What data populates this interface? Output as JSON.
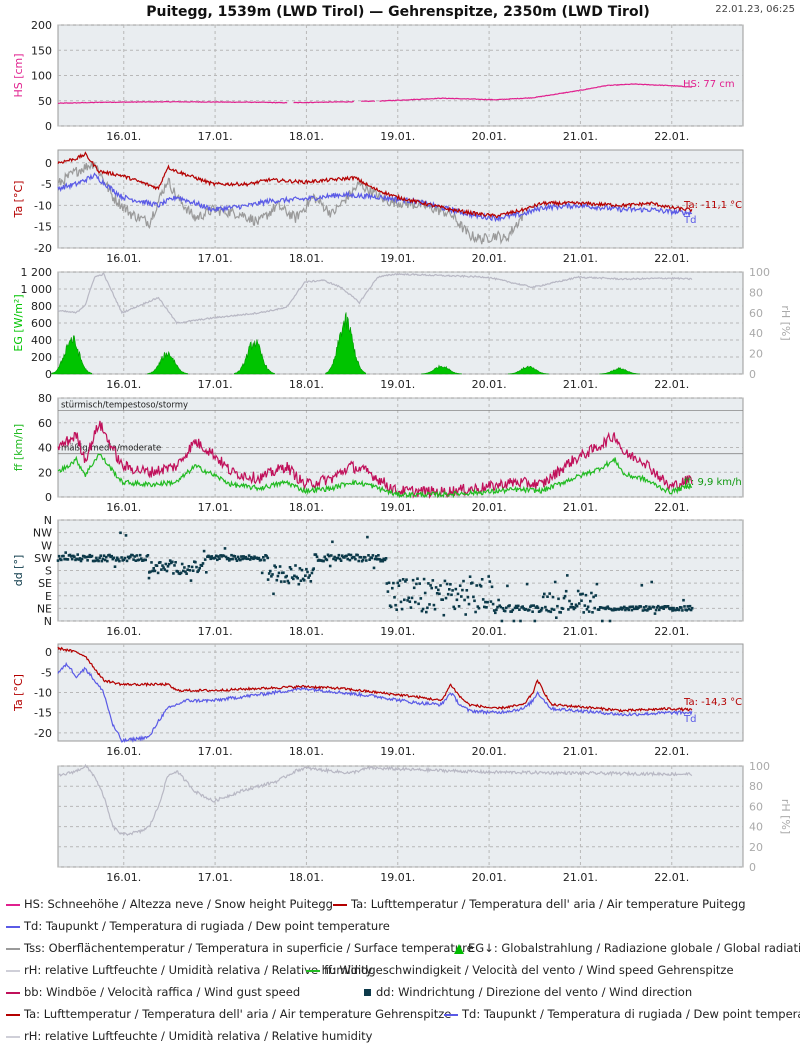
{
  "header": {
    "title": "Puitegg, 1539m (LWD Tirol) — Gehrenspitze, 2350m (LWD Tirol)",
    "timestamp": "22.01.23, 06:25"
  },
  "colors": {
    "snow": "#e0208e",
    "temp": "#b40000",
    "dew": "#5a5ae6",
    "surface": "#9a9a9a",
    "rh": "#b8b8c4",
    "radiation": "#00c400",
    "wind": "#22bb22",
    "gust": "#c0105a",
    "direction": "#0d3a4a",
    "panel_bg": "#e9edf0"
  },
  "chart_data": [
    {
      "type": "line",
      "id": "snow",
      "ylabel": "HS [cm]",
      "ylim": [
        0,
        200
      ],
      "yticks": [
        0,
        50,
        100,
        150,
        200
      ],
      "xticks": [
        "16.01.",
        "17.01.",
        "18.01.",
        "19.01.",
        "20.01.",
        "21.01.",
        "22.01."
      ],
      "series": [
        {
          "name": "HS",
          "x": [
            15.3,
            15.8,
            16.5,
            17.5,
            17.8,
            18.5,
            18.9,
            19.5,
            20.1,
            20.5,
            21.0,
            21.3,
            21.6,
            22.0,
            22.25
          ],
          "values": [
            45,
            47,
            48,
            47,
            46,
            48,
            50,
            55,
            52,
            56,
            70,
            80,
            83,
            80,
            77
          ]
        }
      ],
      "annotations": [
        {
          "text": "HS: 77 cm"
        }
      ],
      "grid": true
    },
    {
      "type": "line",
      "id": "temp-puitegg",
      "ylabel": "Ta [°C]",
      "ylim": [
        -20,
        3
      ],
      "yticks": [
        0,
        -5,
        -10,
        -15,
        -20
      ],
      "xticks": [
        "16.01.",
        "17.01.",
        "18.01.",
        "19.01.",
        "20.01.",
        "21.01.",
        "22.01."
      ],
      "series": [
        {
          "name": "Ta",
          "x": [
            15.3,
            15.5,
            15.6,
            15.75,
            16.0,
            16.4,
            16.5,
            16.6,
            17.0,
            17.4,
            17.6,
            18.0,
            18.3,
            18.55,
            18.75,
            19.0,
            19.3,
            19.6,
            19.9,
            20.1,
            20.4,
            20.6,
            21.0,
            21.5,
            21.8,
            22.0,
            22.25
          ],
          "values": [
            0,
            1,
            2,
            -2,
            -3,
            -6,
            -1,
            -2,
            -5,
            -5,
            -4,
            -4.5,
            -4,
            -3.5,
            -6,
            -8,
            -9.5,
            -11,
            -12,
            -12.5,
            -11,
            -9.5,
            -9.5,
            -10,
            -9.5,
            -10.5,
            -11.1
          ]
        },
        {
          "name": "Td",
          "x": [
            15.3,
            15.5,
            15.7,
            16.0,
            16.4,
            16.6,
            17.0,
            17.4,
            17.6,
            18.0,
            18.4,
            18.8,
            19.2,
            19.6,
            19.9,
            20.1,
            20.4,
            20.6,
            21.0,
            21.5,
            21.8,
            22.0,
            22.25
          ],
          "values": [
            -6,
            -5,
            -3,
            -8,
            -10,
            -8,
            -11,
            -10,
            -9,
            -8.5,
            -7.5,
            -8,
            -9,
            -11,
            -12.5,
            -13,
            -12,
            -10.5,
            -10,
            -11,
            -11,
            -11.5,
            -11.8
          ]
        },
        {
          "name": "Tss",
          "x": [
            15.3,
            15.5,
            15.7,
            15.9,
            16.1,
            16.3,
            16.5,
            16.6,
            16.8,
            17.0,
            17.3,
            17.5,
            17.7,
            17.9,
            18.1,
            18.3,
            18.6,
            18.9,
            19.3,
            19.6,
            19.8,
            19.95,
            20.1,
            20.2,
            20.4
          ],
          "values": [
            -5,
            -2,
            0,
            -8,
            -12,
            -14,
            -4,
            -8,
            -13,
            -11,
            -12,
            -14,
            -10,
            -13,
            -8,
            -12,
            -5,
            -9,
            -10,
            -12,
            -17,
            -18,
            -17,
            -18,
            -12
          ]
        }
      ],
      "annotations": [
        {
          "text": "Ta: -11,1 °C"
        },
        {
          "text": "Td"
        }
      ],
      "grid": true
    },
    {
      "type": "area",
      "id": "radiation",
      "ylabel": "EG [W/m²]",
      "ylabel_right": "rH [%]",
      "ylim": [
        0,
        1200
      ],
      "yticks": [
        0,
        200,
        400,
        600,
        800,
        1000,
        1200
      ],
      "yticks_labels": [
        "0",
        "200",
        "400",
        "600",
        "800",
        "1 000",
        "1 200"
      ],
      "ylim_right": [
        0,
        100
      ],
      "yticks_right": [
        0,
        20,
        40,
        60,
        80,
        100
      ],
      "xticks": [
        "16.01.",
        "17.01.",
        "18.01.",
        "19.01.",
        "20.01.",
        "21.01.",
        "22.01."
      ],
      "series": [
        {
          "name": "EG",
          "peaks": [
            [
              15.45,
              440
            ],
            [
              16.5,
              260
            ],
            [
              17.45,
              400
            ],
            [
              18.45,
              660
            ],
            [
              19.5,
              100
            ],
            [
              20.45,
              90
            ],
            [
              21.45,
              70
            ]
          ]
        },
        {
          "name": "rH",
          "x": [
            15.3,
            15.5,
            15.6,
            15.7,
            15.8,
            16.0,
            16.4,
            16.6,
            17.0,
            17.5,
            17.8,
            18.0,
            18.2,
            18.4,
            18.6,
            18.8,
            19.0,
            20.0,
            20.5,
            21.0,
            21.5,
            22.0,
            22.25
          ],
          "values": [
            62,
            60,
            68,
            95,
            98,
            60,
            75,
            50,
            55,
            60,
            65,
            90,
            92,
            85,
            70,
            95,
            98,
            95,
            85,
            95,
            93,
            94,
            93
          ]
        }
      ],
      "grid": true
    },
    {
      "type": "line",
      "id": "wind",
      "ylabel": "ff [km/h]",
      "ylim": [
        0,
        80
      ],
      "yticks": [
        0,
        20,
        40,
        60,
        80
      ],
      "xticks": [
        "16.01.",
        "17.01.",
        "18.01.",
        "19.01.",
        "20.01.",
        "21.01.",
        "22.01."
      ],
      "thresholds": [
        {
          "value": 70,
          "label": "stürmisch/tempestoso/stormy"
        },
        {
          "value": 35,
          "label": "mäßig/media/moderate"
        }
      ],
      "series": [
        {
          "name": "bb",
          "x": [
            15.3,
            15.5,
            15.6,
            15.75,
            16.0,
            16.3,
            16.6,
            16.8,
            17.0,
            17.2,
            17.5,
            17.8,
            18.0,
            18.3,
            18.5,
            18.7,
            19.0,
            19.5,
            20.0,
            20.3,
            20.6,
            20.9,
            21.2,
            21.4,
            21.5,
            21.7,
            22.0,
            22.25
          ],
          "values": [
            40,
            50,
            30,
            60,
            25,
            20,
            25,
            45,
            35,
            20,
            15,
            25,
            10,
            15,
            25,
            20,
            5,
            4,
            8,
            12,
            10,
            28,
            40,
            50,
            35,
            30,
            8,
            15
          ]
        },
        {
          "name": "ff",
          "x": [
            15.3,
            15.5,
            15.6,
            15.75,
            16.0,
            16.3,
            16.6,
            16.8,
            17.0,
            17.2,
            17.5,
            17.8,
            18.0,
            18.3,
            18.5,
            18.7,
            19.0,
            19.5,
            20.0,
            20.3,
            20.6,
            20.9,
            21.2,
            21.4,
            21.5,
            21.7,
            22.0,
            22.25
          ],
          "values": [
            20,
            30,
            18,
            35,
            12,
            10,
            12,
            25,
            18,
            10,
            7,
            12,
            5,
            7,
            12,
            10,
            2,
            2,
            4,
            6,
            5,
            14,
            22,
            30,
            18,
            15,
            4,
            9.9
          ]
        }
      ],
      "annotations": [
        {
          "text": "ff: 9,9 km/h"
        }
      ],
      "grid": true
    },
    {
      "type": "scatter",
      "id": "direction",
      "ylabel": "dd [°]",
      "yticks_labels": [
        "N",
        "NE",
        "E",
        "SE",
        "S",
        "SW",
        "W",
        "NW",
        "N"
      ],
      "ylim": [
        0,
        360
      ],
      "xticks": [
        "16.01.",
        "17.01.",
        "18.01.",
        "19.01.",
        "20.01.",
        "21.01.",
        "22.01."
      ],
      "series": [
        {
          "name": "dd",
          "segments": [
            [
              15.3,
              16.3,
              225,
              12
            ],
            [
              16.3,
              16.9,
              190,
              22
            ],
            [
              16.9,
              17.6,
              225,
              10
            ],
            [
              17.6,
              18.1,
              170,
              30
            ],
            [
              18.1,
              18.9,
              225,
              12
            ],
            [
              18.9,
              20.1,
              90,
              70
            ],
            [
              20.1,
              20.6,
              45,
              12
            ],
            [
              20.6,
              21.2,
              70,
              40
            ],
            [
              21.2,
              22.25,
              45,
              8
            ]
          ]
        }
      ],
      "grid": true
    },
    {
      "type": "line",
      "id": "temp-gehrenspitze",
      "ylabel": "Ta [°C]",
      "ylim": [
        -22,
        2
      ],
      "yticks": [
        0,
        -5,
        -10,
        -15,
        -20
      ],
      "xticks": [
        "16.01.",
        "17.01.",
        "18.01.",
        "19.01.",
        "20.01.",
        "21.01.",
        "22.01."
      ],
      "series": [
        {
          "name": "Ta",
          "x": [
            15.3,
            15.5,
            15.6,
            15.8,
            16.0,
            16.5,
            16.6,
            17.0,
            17.5,
            18.0,
            18.4,
            18.8,
            19.2,
            19.5,
            19.6,
            19.7,
            19.8,
            20.1,
            20.4,
            20.5,
            20.55,
            20.7,
            21.0,
            21.5,
            22.0,
            22.25
          ],
          "values": [
            1,
            0,
            -1,
            -7,
            -8,
            -8,
            -9.5,
            -9.5,
            -9,
            -8.5,
            -9,
            -10,
            -11,
            -12,
            -8,
            -11,
            -13,
            -14,
            -13,
            -10,
            -7,
            -13,
            -13.5,
            -14.5,
            -14,
            -14.3
          ]
        },
        {
          "name": "Td",
          "x": [
            15.3,
            15.4,
            15.5,
            15.6,
            15.8,
            15.9,
            16.0,
            16.3,
            16.4,
            16.5,
            16.7,
            17.0,
            17.5,
            18.0,
            18.4,
            18.8,
            19.2,
            19.5,
            19.6,
            19.7,
            19.8,
            20.1,
            20.4,
            20.5,
            20.55,
            20.7,
            21.0,
            21.5,
            22.0,
            22.25
          ],
          "values": [
            -5,
            -3,
            -6,
            -4,
            -10,
            -18,
            -22,
            -21,
            -17,
            -14,
            -12,
            -12,
            -10.5,
            -9,
            -10,
            -11,
            -12.5,
            -13,
            -10,
            -13,
            -14.5,
            -15,
            -14,
            -12,
            -10,
            -14,
            -14.5,
            -15.5,
            -15,
            -15
          ]
        }
      ],
      "annotations": [
        {
          "text": "Ta: -14,3 °C"
        },
        {
          "text": "Td"
        }
      ],
      "grid": true
    },
    {
      "type": "line",
      "id": "rh-gehrenspitze",
      "ylabel_right": "rH [%]",
      "ylim_right": [
        0,
        100
      ],
      "yticks_right": [
        0,
        20,
        40,
        60,
        80,
        100
      ],
      "xticks": [
        "16.01.",
        "17.01.",
        "18.01.",
        "19.01.",
        "20.01.",
        "21.01.",
        "22.01."
      ],
      "series": [
        {
          "name": "rH",
          "x": [
            15.3,
            15.5,
            15.6,
            15.7,
            15.8,
            15.9,
            16.0,
            16.2,
            16.3,
            16.4,
            16.5,
            16.6,
            16.8,
            17.0,
            17.3,
            17.5,
            17.7,
            17.9,
            18.0,
            18.3,
            18.5,
            18.7,
            19.0,
            20.0,
            21.0,
            22.0,
            22.25
          ],
          "values": [
            90,
            95,
            100,
            90,
            70,
            40,
            32,
            35,
            40,
            60,
            90,
            95,
            75,
            65,
            75,
            80,
            85,
            95,
            98,
            95,
            93,
            98,
            97,
            94,
            93,
            92,
            92
          ]
        }
      ],
      "grid": true
    }
  ],
  "legend": {
    "rows": [
      [
        {
          "text": "HS: Schneehöhe / Altezza neve / Snow height  Puitegg",
          "kind": "line",
          "color": "#e0208e"
        },
        {
          "text": "Ta: Lufttemperatur / Temperatura dell' aria / Air temperature  Puitegg",
          "kind": "line",
          "color": "#b40000"
        }
      ],
      [
        {
          "text": "Td: Taupunkt / Temperatura di rugiada / Dew point temperature",
          "kind": "line",
          "color": "#5a5ae6"
        }
      ],
      [
        {
          "text": "Tss: Oberflächentemperatur / Temperatura in superficie / Surface temperature",
          "kind": "line",
          "color": "#9a9a9a"
        },
        {
          "text": "EG↓: Globalstrahlung / Radiazione globale / Global radiation",
          "kind": "tri",
          "color": "#00bb00"
        }
      ],
      [
        {
          "text": "rH: relative Luftfeuchte / Umidità relativa / Relative humidity",
          "kind": "line",
          "color": "#cfcfd8"
        },
        {
          "text": "ff: Windgeschwindigkeit / Velocità del vento / Wind speed  Gehrenspitze",
          "kind": "line",
          "color": "#22bb22"
        }
      ],
      [
        {
          "text": "bb: Windböe / Velocità raffica / Wind gust speed",
          "kind": "line",
          "color": "#c0105a"
        },
        {
          "text": "dd: Windrichtung / Direzione del vento / Wind direction",
          "kind": "sq",
          "color": "#0d3a4a"
        }
      ],
      [
        {
          "text": "Ta: Lufttemperatur / Temperatura dell' aria / Air temperature  Gehrenspitze",
          "kind": "line",
          "color": "#b40000"
        },
        {
          "text": "Td: Taupunkt / Temperatura di rugiada / Dew point temperature",
          "kind": "line",
          "color": "#5a5ae6"
        }
      ],
      [
        {
          "text": "rH: relative Luftfeuchte / Umidità relativa / Relative humidity",
          "kind": "line",
          "color": "#cfcfd8"
        }
      ]
    ]
  }
}
